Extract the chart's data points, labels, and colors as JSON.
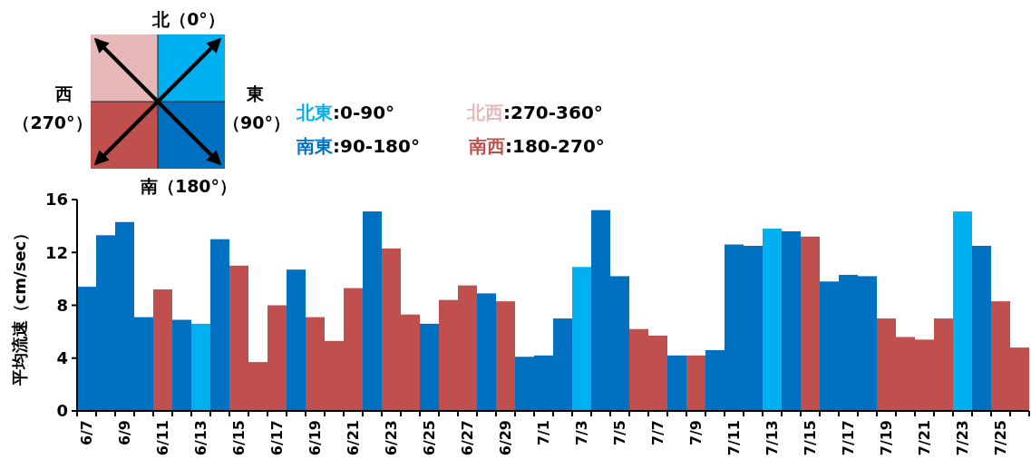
{
  "chart_data": {
    "type": "bar",
    "stacked": true,
    "ylabel": "平均流速（cm/sec）",
    "categories": [
      "6/7",
      null,
      "6/9",
      null,
      "6/11",
      null,
      "6/13",
      null,
      "6/15",
      null,
      "6/17",
      null,
      "6/19",
      null,
      "6/21",
      null,
      "6/23",
      null,
      "6/25",
      null,
      "6/27",
      null,
      "6/29",
      null,
      "7/1",
      null,
      "7/3",
      null,
      "7/5",
      null,
      "7/7",
      null,
      "7/9",
      null,
      "7/11",
      null,
      "7/13",
      null,
      "7/15",
      null,
      "7/17",
      null,
      "7/19",
      null,
      "7/21",
      null,
      "7/23",
      null,
      "7/25",
      null
    ],
    "series": [
      {
        "name": "北東",
        "color": "#00b0f0",
        "values": [
          null,
          null,
          null,
          null,
          null,
          null,
          6.6,
          null,
          null,
          null,
          null,
          null,
          null,
          null,
          null,
          null,
          null,
          null,
          null,
          null,
          null,
          null,
          null,
          null,
          null,
          null,
          10.9,
          null,
          null,
          null,
          null,
          null,
          null,
          null,
          null,
          null,
          13.8,
          null,
          null,
          null,
          null,
          null,
          null,
          null,
          null,
          null,
          15.1,
          null,
          null,
          null
        ]
      },
      {
        "name": "北西",
        "color": "#e6b9b8",
        "values": [
          null,
          null,
          null,
          null,
          null,
          null,
          null,
          null,
          null,
          null,
          null,
          null,
          null,
          null,
          null,
          null,
          null,
          null,
          null,
          null,
          null,
          null,
          null,
          null,
          null,
          null,
          null,
          null,
          null,
          null,
          null,
          null,
          null,
          null,
          null,
          null,
          null,
          null,
          null,
          null,
          null,
          null,
          null,
          null,
          null,
          null,
          null,
          null,
          null,
          null
        ]
      },
      {
        "name": "南東",
        "color": "#0070c0",
        "values": [
          9.4,
          13.3,
          14.3,
          7.1,
          null,
          6.9,
          null,
          13.0,
          null,
          null,
          null,
          10.7,
          null,
          null,
          null,
          15.1,
          null,
          null,
          6.6,
          null,
          null,
          8.9,
          null,
          4.1,
          4.2,
          7.0,
          null,
          15.2,
          10.2,
          null,
          null,
          4.2,
          null,
          4.6,
          12.6,
          12.5,
          null,
          13.6,
          null,
          9.8,
          10.3,
          10.2,
          null,
          null,
          null,
          null,
          null,
          12.5,
          null,
          null
        ]
      },
      {
        "name": "南西",
        "color": "#c0504d",
        "values": [
          null,
          null,
          null,
          null,
          9.2,
          null,
          null,
          null,
          11.0,
          3.7,
          8.0,
          null,
          7.1,
          5.3,
          9.3,
          null,
          12.3,
          7.3,
          null,
          8.4,
          9.5,
          null,
          8.3,
          null,
          null,
          null,
          null,
          null,
          null,
          6.2,
          5.7,
          null,
          4.2,
          null,
          null,
          null,
          null,
          null,
          13.2,
          null,
          null,
          null,
          7.0,
          5.6,
          5.4,
          7.0,
          null,
          null,
          8.3,
          4.8
        ]
      }
    ],
    "ylim": [
      0,
      16
    ],
    "yticks": [
      0,
      4,
      8,
      12,
      16
    ],
    "grid": false,
    "legend": "top",
    "annotations": [
      ":0-90°",
      ":270-360°",
      ":90-180°",
      ":180-270°",
      "北（0°）",
      "東",
      "（90°）",
      "南（180°）",
      "西",
      "（270°）"
    ]
  }
}
